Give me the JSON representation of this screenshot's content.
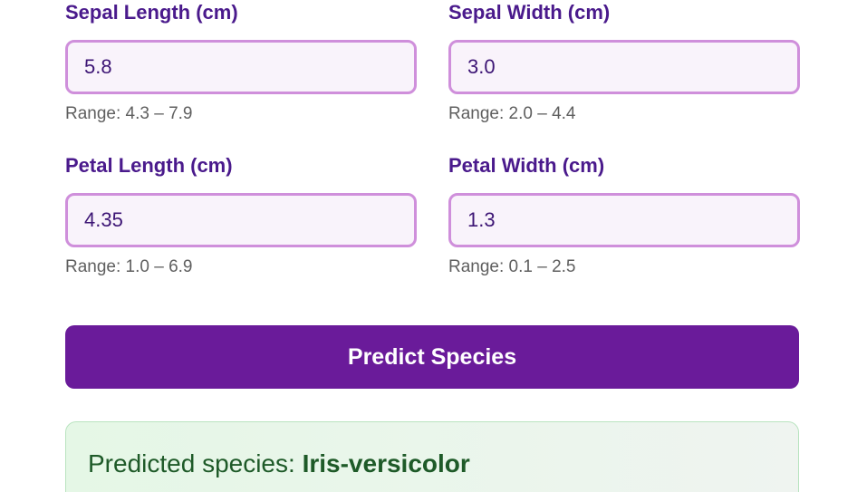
{
  "fields": [
    {
      "label": "Sepal Length (cm)",
      "value": "5.8",
      "hint": "Range: 4.3 – 7.9"
    },
    {
      "label": "Sepal Width (cm)",
      "value": "3.0",
      "hint": "Range: 2.0 – 4.4"
    },
    {
      "label": "Petal Length (cm)",
      "value": "4.35",
      "hint": "Range: 1.0 – 6.9"
    },
    {
      "label": "Petal Width (cm)",
      "value": "1.3",
      "hint": "Range: 0.1 – 2.5"
    }
  ],
  "predict_button": {
    "label": "Predict Species"
  },
  "result": {
    "prefix": "Predicted species:",
    "species": "Iris-versicolor"
  }
}
